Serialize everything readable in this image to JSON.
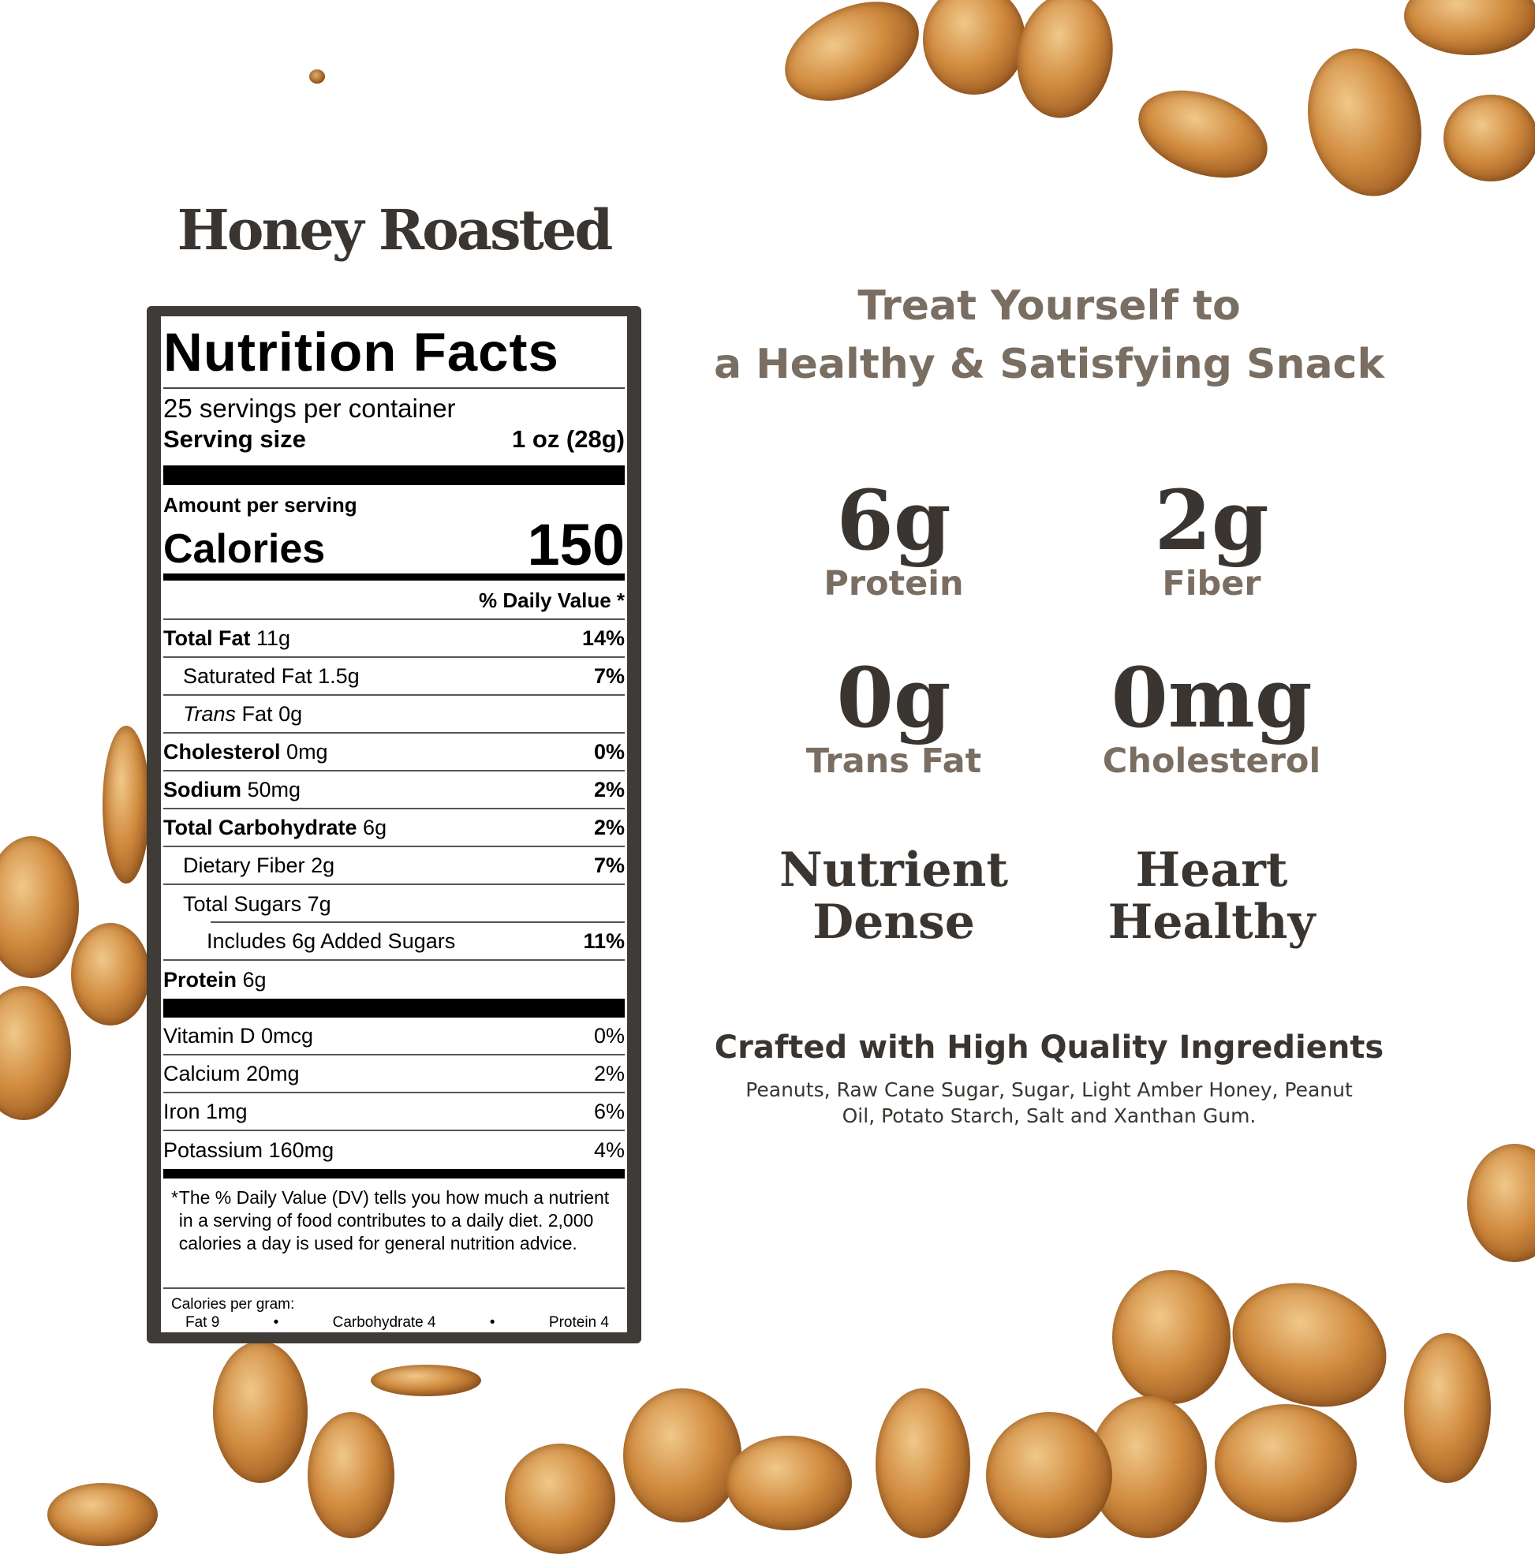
{
  "brand_title": "Honey Roasted",
  "nutrition": {
    "title": "Nutrition Facts",
    "servings": "25 servings per container",
    "serving_size_label": "Serving size",
    "serving_size_value": "1 oz (28g)",
    "amount_per_serving": "Amount per serving",
    "calories_label": "Calories",
    "calories_value": "150",
    "daily_value_header": "% Daily Value *",
    "rows": [
      {
        "name": "Total Fat",
        "amount": "11g",
        "dv": "14%"
      },
      {
        "name": "Saturated Fat",
        "amount": "1.5g",
        "dv": "7%"
      },
      {
        "name": "Trans",
        "name2": "Fat",
        "amount": "0g",
        "dv": ""
      },
      {
        "name": "Cholesterol",
        "amount": "0mg",
        "dv": "0%"
      },
      {
        "name": "Sodium",
        "amount": "50mg",
        "dv": "2%"
      },
      {
        "name": "Total Carbohydrate",
        "amount": "6g",
        "dv": "2%"
      },
      {
        "name": "Dietary Fiber",
        "amount": "2g",
        "dv": "7%"
      },
      {
        "name": "Total Sugars",
        "amount": "7g",
        "dv": ""
      },
      {
        "name": "Includes 6g Added Sugars",
        "amount": "",
        "dv": "11%"
      },
      {
        "name": "Protein",
        "amount": "6g",
        "dv": ""
      }
    ],
    "vitamins": [
      {
        "text": "Vitamin D 0mcg",
        "dv": "0%"
      },
      {
        "text": "Calcium 20mg",
        "dv": "2%"
      },
      {
        "text": "Iron 1mg",
        "dv": "6%"
      },
      {
        "text": "Potassium 160mg",
        "dv": "4%"
      }
    ],
    "footnote_star": "*",
    "footnote": "The % Daily Value (DV) tells you how much a nutrient in a serving of food contributes to a daily diet. 2,000 calories a day is used for general nutrition advice.",
    "calories_per_gram": "Calories per gram:",
    "cpg_fat": "Fat 9",
    "cpg_carb": "Carbohydrate 4",
    "cpg_protein": "Protein 4",
    "bullet": "•"
  },
  "headline": {
    "line1": "Treat Yourself to",
    "line2": "a Healthy & Satisfying Snack"
  },
  "stats": [
    {
      "value": "6g",
      "label": "Protein"
    },
    {
      "value": "2g",
      "label": "Fiber"
    },
    {
      "value": "0g",
      "label": "Trans Fat"
    },
    {
      "value": "0mg",
      "label": "Cholesterol"
    }
  ],
  "claims": [
    {
      "line1": "Nutrient",
      "line2": "Dense"
    },
    {
      "line1": "Heart",
      "line2": "Healthy"
    }
  ],
  "ingredients": {
    "title": "Crafted with High Quality Ingredients",
    "text": "Peanuts, Raw Cane Sugar, Sugar, Light Amber Honey, Peanut Oil, Potato Starch, Salt and Xanthan Gum."
  },
  "colors": {
    "label_frame": "#3f3b37",
    "heading_dark": "#3a3530",
    "heading_muted": "#7a6e62",
    "peanut": "#c98a45"
  }
}
